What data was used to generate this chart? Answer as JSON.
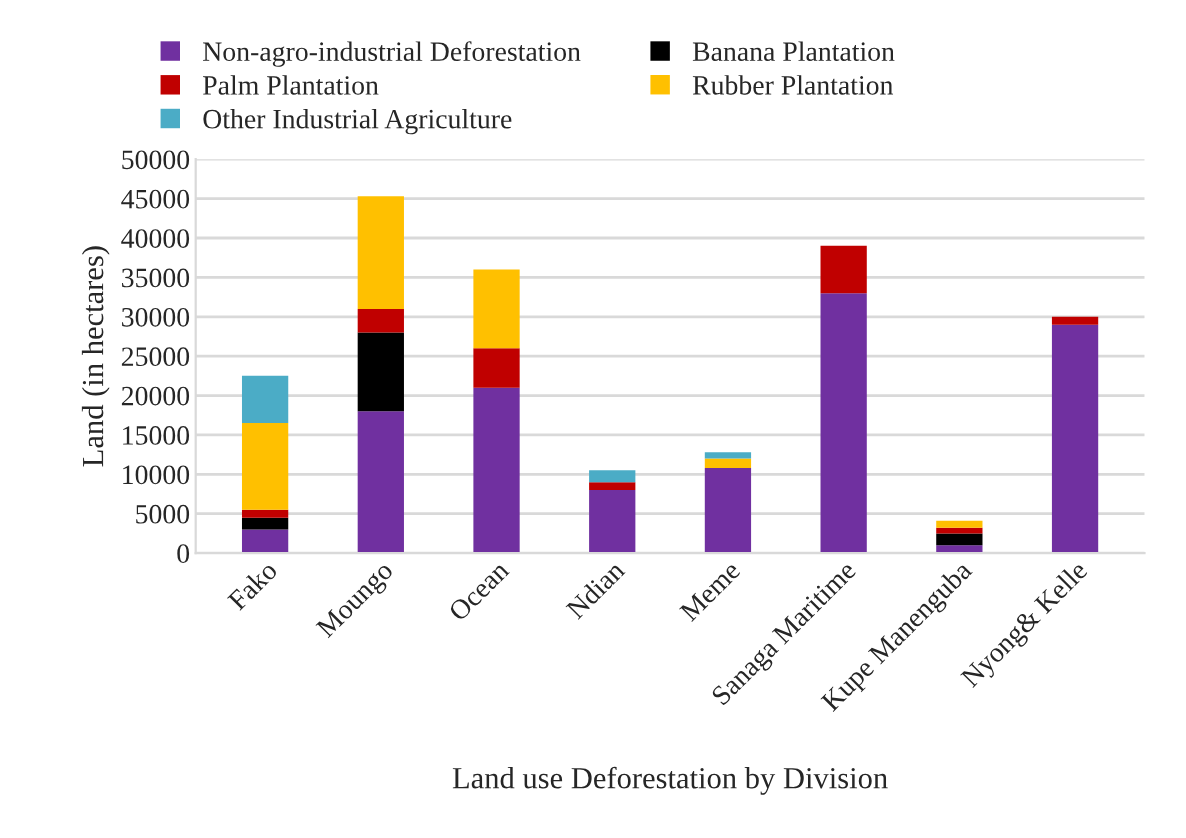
{
  "chart_data": {
    "type": "bar",
    "stacked": true,
    "xlabel": "Land use Deforestation by Division",
    "ylabel": "Land (in hectares)",
    "categories": [
      "Fako",
      "Moungo",
      "Ocean",
      "Ndian",
      "Meme",
      "Sanaga Maritime",
      "Kupe Manenguba",
      "Nyong& Kelle"
    ],
    "series": [
      {
        "name": "Non-agro-industrial Deforestation",
        "color": "#7030a0",
        "values": [
          3000,
          18000,
          21000,
          8000,
          10800,
          33000,
          1000,
          29000
        ]
      },
      {
        "name": "Banana Plantation",
        "color": "#000000",
        "values": [
          1500,
          10000,
          0,
          0,
          0,
          0,
          1500,
          0
        ]
      },
      {
        "name": "Palm Plantation",
        "color": "#c00000",
        "values": [
          1000,
          3000,
          5000,
          1000,
          0,
          6000,
          700,
          1000
        ]
      },
      {
        "name": "Rubber Plantation",
        "color": "#ffc000",
        "values": [
          11000,
          14300,
          10000,
          0,
          1200,
          0,
          900,
          0
        ]
      },
      {
        "name": "Other Industrial Agriculture",
        "color": "#4bacc6",
        "values": [
          6000,
          0,
          0,
          1500,
          800,
          0,
          0,
          0
        ]
      }
    ],
    "ylim": [
      0,
      50000
    ],
    "yticks": [
      0,
      5000,
      10000,
      15000,
      20000,
      25000,
      30000,
      35000,
      40000,
      45000,
      50000
    ],
    "grid": "y",
    "legend": "top"
  }
}
